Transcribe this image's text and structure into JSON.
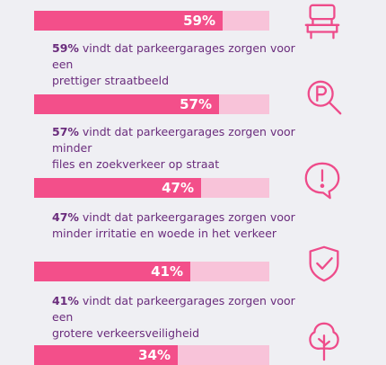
{
  "colors": {
    "bar_fill": "#F34F8A",
    "bar_track": "#F8C3D9",
    "text": "#6A2C7C",
    "icon": "#EE4B8A",
    "background": "#EFEFF3"
  },
  "chart_data": {
    "type": "bar",
    "orientation": "horizontal",
    "value_unit": "%",
    "xlim": [
      0,
      100
    ],
    "categories": [
      "vindt dat parkeergarages zorgen voor een prettiger straatbeeld",
      "vindt dat parkeergarages zorgen voor minder files en zoekverkeer op straat",
      "vindt dat parkeergarages zorgen voor minder irritatie en woede in het verkeer",
      "vindt dat parkeergarages zorgen voor een grotere verkeersveiligheid",
      ""
    ],
    "values": [
      59,
      57,
      47,
      41,
      34
    ]
  },
  "items": [
    {
      "value_label": "59%",
      "desc_pct": "59%",
      "desc_line1": " vindt dat parkeergarages zorgen voor een",
      "desc_line2": "prettiger straatbeeld",
      "icon": "bench-icon"
    },
    {
      "value_label": "57%",
      "desc_pct": "57%",
      "desc_line1": " vindt dat parkeergarages zorgen voor minder",
      "desc_line2": "files en zoekverkeer op straat",
      "icon": "parking-search-icon"
    },
    {
      "value_label": "47%",
      "desc_pct": "47%",
      "desc_line1": " vindt dat parkeergarages zorgen voor",
      "desc_line2": "minder irritatie en woede in het verkeer",
      "icon": "exclamation-bubble-icon"
    },
    {
      "value_label": "41%",
      "desc_pct": "41%",
      "desc_line1": " vindt dat parkeergarages zorgen voor een",
      "desc_line2": "grotere verkeersveiligheid",
      "icon": "shield-check-icon"
    },
    {
      "value_label": "34%",
      "icon": "tree-icon"
    }
  ]
}
